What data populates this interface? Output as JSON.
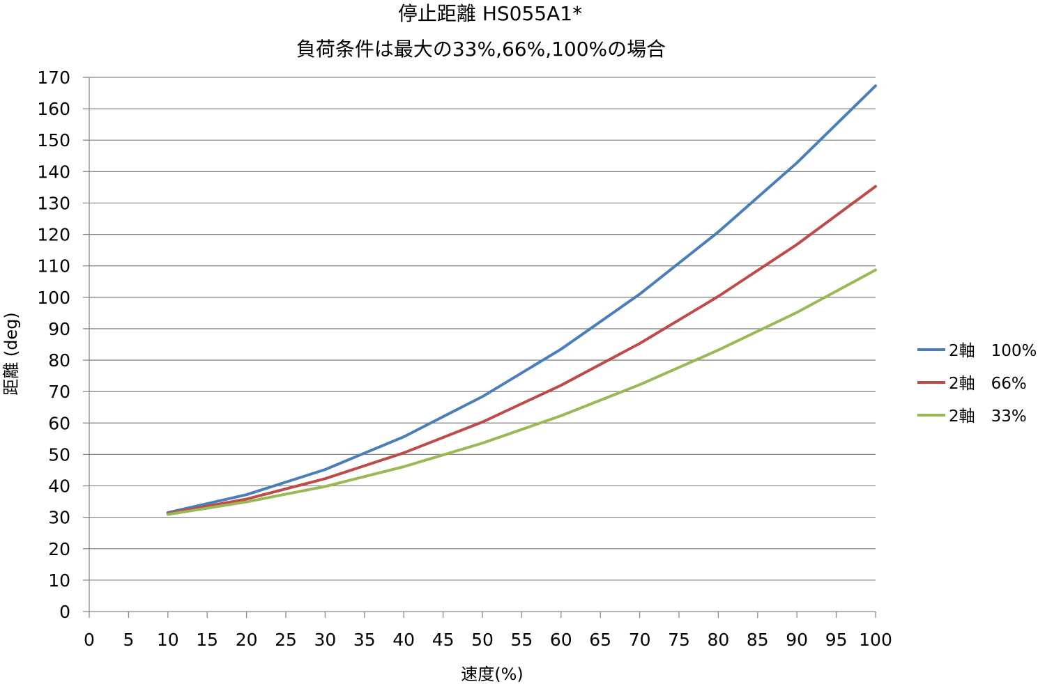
{
  "chart_data": {
    "type": "line",
    "title": "停止距離 HS055A1*",
    "subtitle": "負荷条件は最大の33%,66%,100%の場合",
    "xlabel": "速度(%)",
    "ylabel": "距離 (deg)",
    "xlim": [
      0,
      100
    ],
    "ylim": [
      0,
      170
    ],
    "x_ticks": [
      "0",
      "5",
      "10",
      "15",
      "20",
      "25",
      "30",
      "35",
      "40",
      "45",
      "50",
      "55",
      "60",
      "65",
      "70",
      "75",
      "80",
      "85",
      "90",
      "95",
      "100"
    ],
    "y_ticks": [
      "0",
      "10",
      "20",
      "30",
      "40",
      "50",
      "60",
      "70",
      "80",
      "90",
      "100",
      "110",
      "120",
      "130",
      "140",
      "150",
      "160",
      "170"
    ],
    "grid": "horizontal",
    "legend_position": "right",
    "x": [
      10,
      20,
      30,
      40,
      50,
      60,
      70,
      80,
      90,
      100
    ],
    "series": [
      {
        "name": "2軸　100%",
        "color": "#4a7ebb",
        "values": [
          31.5,
          37.2,
          45.2,
          55.6,
          68.4,
          83.5,
          101.0,
          120.8,
          142.8,
          167.3
        ]
      },
      {
        "name": "2軸　66%",
        "color": "#be4b48",
        "values": [
          31.2,
          35.8,
          42.3,
          50.5,
          60.3,
          72.0,
          85.3,
          100.3,
          116.8,
          135.3
        ]
      },
      {
        "name": "2軸　33%",
        "color": "#98b954",
        "values": [
          30.9,
          34.9,
          39.8,
          46.1,
          53.6,
          62.3,
          72.2,
          83.2,
          95.2,
          108.7
        ]
      }
    ]
  }
}
